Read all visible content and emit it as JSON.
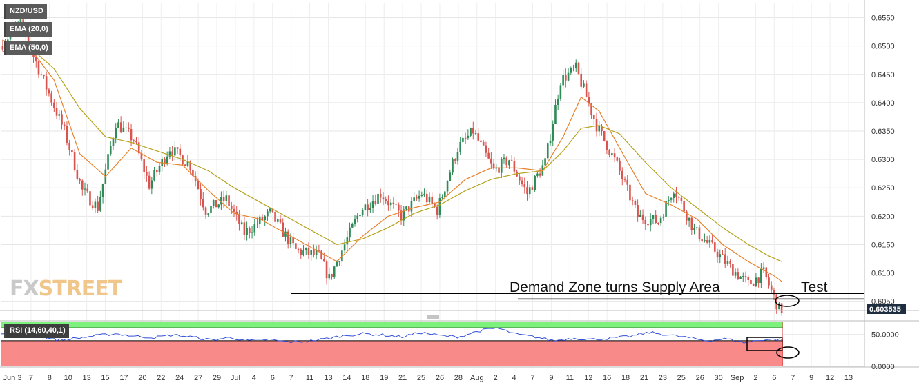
{
  "legend": {
    "symbol": "NZD/USD",
    "ema20": "EMA (20,0)",
    "ema50": "EMA (50,0)",
    "rsi": "RSI (14,60,40,1)"
  },
  "watermark": {
    "part1": "FX",
    "part2": "STREET"
  },
  "annotations": {
    "demand_zone": "Demand Zone turns Supply Area",
    "test": "Test"
  },
  "current_price_label": "0.603535",
  "colors": {
    "bull": "#2e8b57",
    "bear": "#d9534f",
    "ema20": "#e8812a",
    "ema50": "#b5a21a",
    "rsi_line": "#2f4fd8",
    "rsi_upper_zone": "#7cf27c",
    "rsi_lower_zone": "#f88a8a",
    "price_tag_bg": "#1f2e3f"
  },
  "chart_data": {
    "type": "candlestick",
    "ylim": [
      0.6035,
      0.6575
    ],
    "yticks": [
      "0.6550",
      "0.6500",
      "0.6450",
      "0.6400",
      "0.6350",
      "0.6300",
      "0.6250",
      "0.6200",
      "0.6150",
      "0.6100",
      "0.6050"
    ],
    "x_labels": [
      "Jun 3",
      "7",
      "8",
      "10",
      "13",
      "15",
      "17",
      "20",
      "22",
      "24",
      "27",
      "29",
      "Jul",
      "4",
      "6",
      "7",
      "11",
      "13",
      "14",
      "18",
      "19",
      "21",
      "25",
      "26",
      "28",
      "Aug",
      "2",
      "4",
      "7",
      "9",
      "11",
      "12",
      "16",
      "18",
      "21",
      "23",
      "25",
      "26",
      "30",
      "Sep",
      "2",
      "6",
      "7",
      "9",
      "12",
      "13"
    ],
    "price_path": [
      [
        0,
        0.65
      ],
      [
        8,
        0.654
      ],
      [
        15,
        0.646
      ],
      [
        25,
        0.635
      ],
      [
        32,
        0.6245
      ],
      [
        38,
        0.6215
      ],
      [
        45,
        0.6365
      ],
      [
        52,
        0.6335
      ],
      [
        58,
        0.6255
      ],
      [
        66,
        0.632
      ],
      [
        74,
        0.629
      ],
      [
        80,
        0.621
      ],
      [
        88,
        0.623
      ],
      [
        95,
        0.617
      ],
      [
        105,
        0.6205
      ],
      [
        115,
        0.614
      ],
      [
        124,
        0.613
      ],
      [
        128,
        0.609
      ],
      [
        134,
        0.615
      ],
      [
        140,
        0.621
      ],
      [
        148,
        0.624
      ],
      [
        156,
        0.62
      ],
      [
        164,
        0.624
      ],
      [
        170,
        0.621
      ],
      [
        178,
        0.632
      ],
      [
        184,
        0.635
      ],
      [
        192,
        0.628
      ],
      [
        198,
        0.63
      ],
      [
        205,
        0.624
      ],
      [
        212,
        0.6295
      ],
      [
        218,
        0.644
      ],
      [
        224,
        0.646
      ],
      [
        232,
        0.636
      ],
      [
        240,
        0.629
      ],
      [
        248,
        0.62
      ],
      [
        256,
        0.619
      ],
      [
        262,
        0.625
      ],
      [
        270,
        0.6175
      ],
      [
        278,
        0.614
      ],
      [
        284,
        0.611
      ],
      [
        291,
        0.608
      ],
      [
        297,
        0.61
      ],
      [
        303,
        0.6036
      ]
    ],
    "ema20": [
      [
        0,
        0.649
      ],
      [
        10,
        0.65
      ],
      [
        20,
        0.644
      ],
      [
        30,
        0.631
      ],
      [
        40,
        0.627
      ],
      [
        50,
        0.632
      ],
      [
        60,
        0.6295
      ],
      [
        70,
        0.629
      ],
      [
        80,
        0.6245
      ],
      [
        90,
        0.6205
      ],
      [
        100,
        0.6195
      ],
      [
        110,
        0.617
      ],
      [
        120,
        0.6145
      ],
      [
        130,
        0.612
      ],
      [
        140,
        0.6165
      ],
      [
        150,
        0.62
      ],
      [
        160,
        0.6215
      ],
      [
        170,
        0.6225
      ],
      [
        180,
        0.6265
      ],
      [
        190,
        0.6285
      ],
      [
        200,
        0.6285
      ],
      [
        210,
        0.628
      ],
      [
        218,
        0.634
      ],
      [
        225,
        0.641
      ],
      [
        232,
        0.6385
      ],
      [
        240,
        0.632
      ],
      [
        250,
        0.624
      ],
      [
        260,
        0.622
      ],
      [
        270,
        0.6195
      ],
      [
        280,
        0.615
      ],
      [
        290,
        0.612
      ],
      [
        300,
        0.6095
      ],
      [
        303,
        0.6085
      ]
    ],
    "ema50": [
      [
        0,
        0.651
      ],
      [
        10,
        0.65
      ],
      [
        20,
        0.646
      ],
      [
        30,
        0.639
      ],
      [
        40,
        0.634
      ],
      [
        50,
        0.633
      ],
      [
        60,
        0.6315
      ],
      [
        70,
        0.63
      ],
      [
        80,
        0.628
      ],
      [
        90,
        0.625
      ],
      [
        100,
        0.6225
      ],
      [
        110,
        0.62
      ],
      [
        120,
        0.6175
      ],
      [
        130,
        0.615
      ],
      [
        140,
        0.616
      ],
      [
        150,
        0.618
      ],
      [
        160,
        0.6205
      ],
      [
        170,
        0.622
      ],
      [
        180,
        0.6245
      ],
      [
        190,
        0.6265
      ],
      [
        200,
        0.6275
      ],
      [
        210,
        0.628
      ],
      [
        218,
        0.6315
      ],
      [
        225,
        0.6355
      ],
      [
        232,
        0.636
      ],
      [
        240,
        0.6345
      ],
      [
        250,
        0.6295
      ],
      [
        260,
        0.625
      ],
      [
        270,
        0.6215
      ],
      [
        280,
        0.618
      ],
      [
        290,
        0.615
      ],
      [
        298,
        0.613
      ],
      [
        303,
        0.612
      ]
    ],
    "horizontal_lines": [
      0.6064,
      0.6054
    ],
    "rsi": {
      "ylim": [
        0,
        70
      ],
      "yticks": [
        "50.0000",
        "0.0000"
      ],
      "upper_level": 60,
      "lower_level": 40,
      "values": [
        50,
        52,
        47,
        41,
        44,
        48,
        51,
        47,
        45,
        49,
        46,
        41,
        45,
        40,
        42,
        38,
        39,
        43,
        48,
        51,
        49,
        46,
        53,
        48,
        46,
        55,
        60,
        50,
        46,
        40,
        44,
        42,
        44,
        47,
        53,
        49,
        45,
        40,
        43,
        37,
        42,
        42
      ]
    }
  }
}
